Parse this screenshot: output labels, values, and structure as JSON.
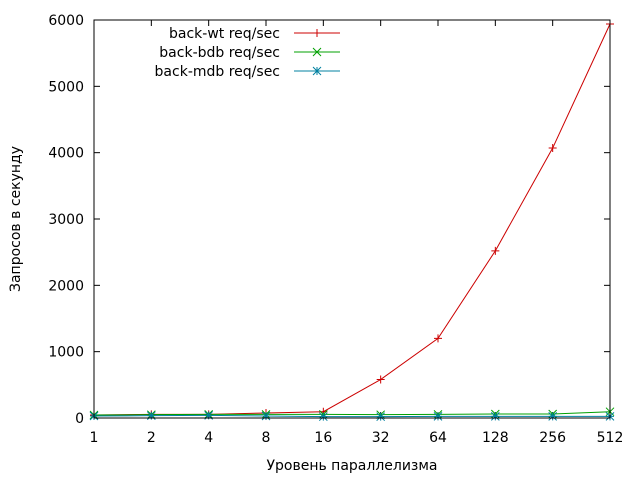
{
  "chart_data": {
    "type": "line",
    "xlabel": "Уровень параллелизма",
    "ylabel": "Запросов в секунду",
    "x_scale": "log2",
    "categories": [
      "1",
      "2",
      "4",
      "8",
      "16",
      "32",
      "64",
      "128",
      "256",
      "512"
    ],
    "x": [
      1,
      2,
      4,
      8,
      16,
      32,
      64,
      128,
      256,
      512
    ],
    "ylim": [
      0,
      6000
    ],
    "yticks": [
      0,
      1000,
      2000,
      3000,
      4000,
      5000,
      6000
    ],
    "grid": false,
    "legend_position": "top-left",
    "series": [
      {
        "name": "back-wt req/sec",
        "color": "#cc0000",
        "marker": "plus",
        "values": [
          45,
          55,
          55,
          75,
          95,
          580,
          1200,
          2520,
          4070,
          5940
        ]
      },
      {
        "name": "back-bdb req/sec",
        "color": "#00a000",
        "marker": "cross",
        "values": [
          45,
          50,
          55,
          55,
          55,
          50,
          55,
          60,
          60,
          95
        ]
      },
      {
        "name": "back-mdb req/sec",
        "color": "#0080a0",
        "marker": "star",
        "values": [
          30,
          35,
          40,
          30,
          20,
          20,
          25,
          25,
          25,
          25
        ]
      }
    ]
  }
}
